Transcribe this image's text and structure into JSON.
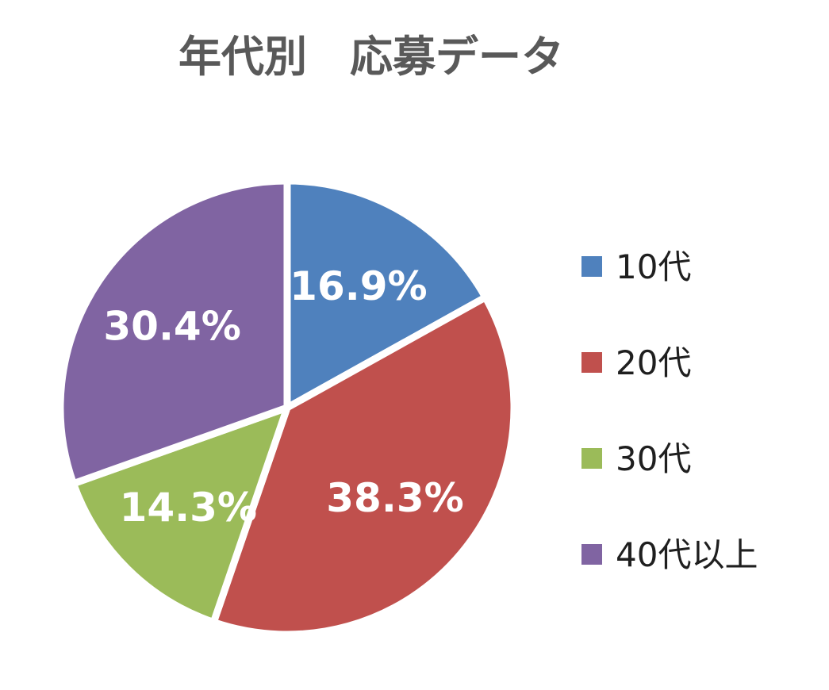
{
  "chart_data": {
    "type": "pie",
    "title": "年代別　応募データ",
    "legend_position": "right",
    "slices": [
      {
        "label": "10代",
        "value": 16.9,
        "value_label": "16.9%",
        "color": "#4F81BD"
      },
      {
        "label": "20代",
        "value": 38.3,
        "value_label": "38.3%",
        "color": "#C0504D"
      },
      {
        "label": "30代",
        "value": 14.3,
        "value_label": "14.3%",
        "color": "#9BBB59"
      },
      {
        "label": "40代以上",
        "value": 30.4,
        "value_label": "30.4%",
        "color": "#8064A2"
      }
    ]
  }
}
